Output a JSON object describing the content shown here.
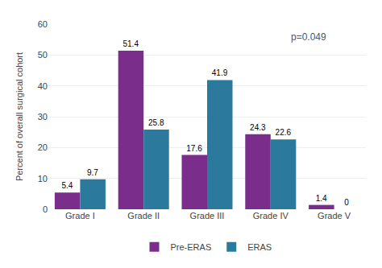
{
  "chart_data": {
    "type": "bar",
    "categories": [
      "Grade I",
      "Grade II",
      "Grade III",
      "Grade IV",
      "Grade V"
    ],
    "series": [
      {
        "name": "Pre-ERAS",
        "color": "#7B2D8B",
        "values": [
          5.4,
          51.4,
          17.6,
          24.3,
          1.4
        ]
      },
      {
        "name": "ERAS",
        "color": "#2B7A9E",
        "values": [
          9.7,
          25.8,
          41.9,
          22.6,
          0
        ]
      }
    ],
    "ylabel": "Percent of overall surgical cohort",
    "ylim": [
      0,
      60
    ],
    "yticks": [
      0,
      10,
      20,
      30,
      40,
      50,
      60
    ],
    "grid": true,
    "legend": "bottom",
    "data_labels": true,
    "annotation": "p=0.049"
  }
}
